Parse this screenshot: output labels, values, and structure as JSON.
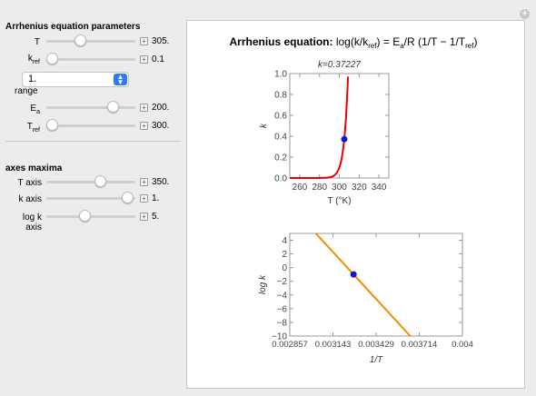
{
  "controls": {
    "section_params": "Arrhenius equation parameters",
    "T": {
      "label": "T",
      "value": "305.",
      "fraction": 0.36
    },
    "kref": {
      "label_main": "k",
      "label_sub": "ref",
      "value": "0.1",
      "fraction": 0.0
    },
    "kref_range": {
      "label_main": "k",
      "label_sub": "ref",
      "label_line2": "range",
      "selected": "1."
    },
    "Ea": {
      "label_main": "E",
      "label_sub": "a",
      "value": "200.",
      "fraction": 0.78
    },
    "Tref": {
      "label_main": "T",
      "label_sub": "ref",
      "value": "300.",
      "fraction": 0.0
    },
    "section_axes": "axes maxima",
    "T_axis": {
      "label": "T axis",
      "value": "350.",
      "fraction": 0.62
    },
    "k_axis": {
      "label": "k axis",
      "value": "1.",
      "fraction": 0.97
    },
    "logk_axis": {
      "label": "log k axis",
      "value": "5.",
      "fraction": 0.42
    }
  },
  "title": {
    "prefix": "Arrhenius equation: ",
    "formula": "log(k/k",
    "formula_sub1": "ref",
    "formula_mid": ") = E",
    "formula_sub2": "a",
    "formula_mid2": "/R (1/T − 1/T",
    "formula_sub3": "ref",
    "formula_end": ")"
  },
  "colors": {
    "curve1": "#ee0000",
    "curve2": "#f28c00",
    "point": "#1414d8"
  },
  "chart_data": [
    {
      "type": "line",
      "title": "k=0.37227",
      "xlabel": "T (°K)",
      "ylabel": "k",
      "xlim": [
        250,
        350
      ],
      "ylim": [
        0,
        1
      ],
      "xticks": [
        260,
        280,
        300,
        320,
        340
      ],
      "yticks": [
        0.0,
        0.2,
        0.4,
        0.6,
        0.8,
        1.0
      ],
      "ytick_labels": [
        "0.0",
        "0.2",
        "0.4",
        "0.6",
        "0.8",
        "1.0"
      ],
      "point": {
        "x": 305,
        "y": 0.37227
      }
    },
    {
      "type": "line",
      "title": "",
      "xlabel": "1/T",
      "ylabel": "log k",
      "xlim": [
        0.002857,
        0.004
      ],
      "ylim": [
        -10,
        5
      ],
      "xticks": [
        0.002857,
        0.003143,
        0.003429,
        0.003714,
        0.004
      ],
      "xtick_labels": [
        "0.002857",
        "0.003143",
        "0.003429",
        "0.003714",
        "0.004"
      ],
      "yticks": [
        4,
        2,
        0,
        -2,
        -4,
        -6,
        -8,
        -10
      ],
      "ytick_labels": [
        "4",
        "2",
        "0",
        "−2",
        "−4",
        "−6",
        "−8",
        "−10"
      ],
      "point": {
        "x": 0.003279,
        "y": -0.988
      }
    }
  ]
}
